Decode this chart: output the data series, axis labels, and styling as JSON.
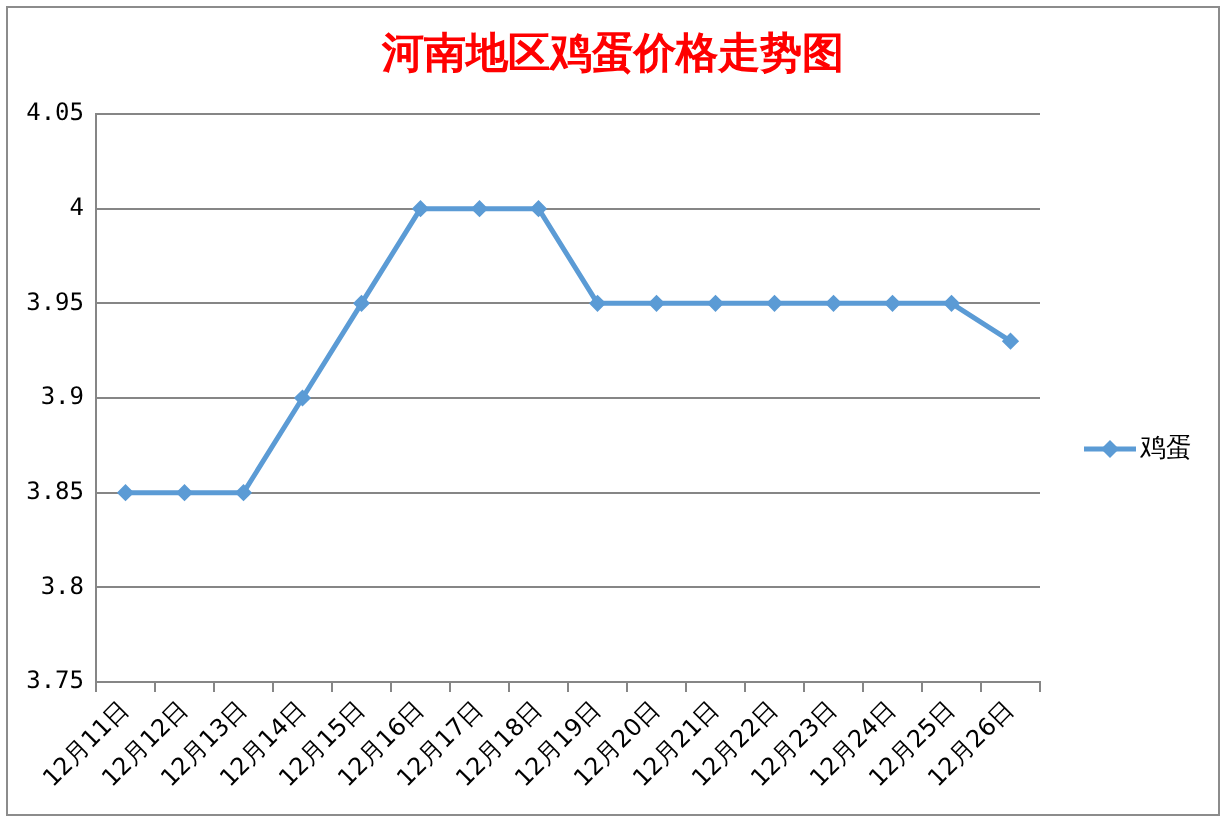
{
  "chart_data": {
    "type": "line",
    "title": "河南地区鸡蛋价格走势图",
    "categories": [
      "12月11日",
      "12月12日",
      "12月13日",
      "12月14日",
      "12月15日",
      "12月16日",
      "12月17日",
      "12月18日",
      "12月19日",
      "12月20日",
      "12月21日",
      "12月22日",
      "12月23日",
      "12月24日",
      "12月25日",
      "12月26日"
    ],
    "series": [
      {
        "name": "鸡蛋",
        "color": "#5b9bd5",
        "values": [
          3.85,
          3.85,
          3.85,
          3.9,
          3.95,
          4,
          4,
          4,
          3.95,
          3.95,
          3.95,
          3.95,
          3.95,
          3.95,
          3.95,
          3.93
        ]
      }
    ],
    "ylim": [
      3.75,
      4.05
    ],
    "yticks": [
      3.75,
      3.8,
      3.85,
      3.9,
      3.95,
      4,
      4.05
    ],
    "grid": "y",
    "legend": "right",
    "marker": "diamond"
  }
}
